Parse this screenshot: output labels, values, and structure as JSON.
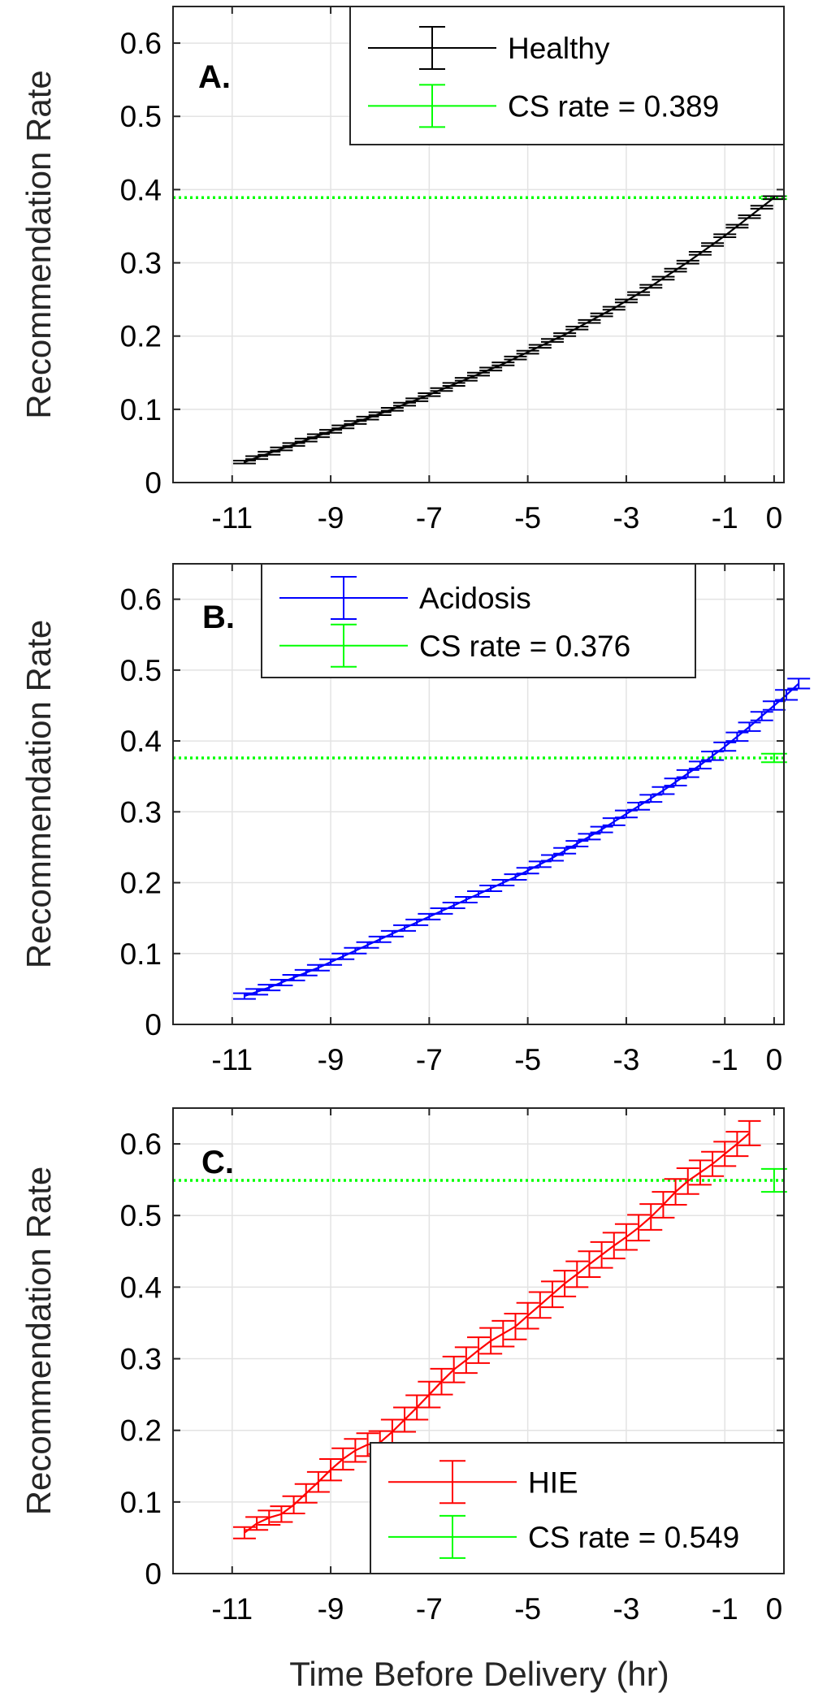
{
  "figure": {
    "xlabel": "Time Before Delivery (hr)"
  },
  "chart_data": [
    {
      "type": "line",
      "panel": "A.",
      "ylabel": "Recommendation Rate",
      "xlabel": "",
      "xlim": [
        -12.2,
        0.2
      ],
      "ylim": [
        0,
        0.65
      ],
      "xticks": [
        -11,
        -9,
        -7,
        -5,
        -3,
        -1,
        0
      ],
      "xtick_labels": [
        "-11",
        "-9",
        "-7",
        "-5",
        "-3",
        "-1",
        "0"
      ],
      "yticks": [
        0,
        0.1,
        0.2,
        0.3,
        0.4,
        0.5,
        0.6
      ],
      "ytick_labels": [
        "0",
        "0.1",
        "0.2",
        "0.3",
        "0.4",
        "0.5",
        "0.6"
      ],
      "grid": true,
      "legend_position": "top-right",
      "series": [
        {
          "name": "Healthy",
          "color": "#000000",
          "x_start": -10.75,
          "x_step": 0.25,
          "values": [
            0.028,
            0.034,
            0.04,
            0.046,
            0.052,
            0.058,
            0.064,
            0.07,
            0.076,
            0.082,
            0.088,
            0.094,
            0.1,
            0.107,
            0.113,
            0.12,
            0.127,
            0.134,
            0.141,
            0.148,
            0.155,
            0.162,
            0.17,
            0.178,
            0.186,
            0.194,
            0.202,
            0.211,
            0.22,
            0.229,
            0.238,
            0.248,
            0.258,
            0.268,
            0.279,
            0.29,
            0.301,
            0.313,
            0.325,
            0.337,
            0.35,
            0.363,
            0.376,
            0.389
          ],
          "error": [
            0.002,
            0.002,
            0.002,
            0.002,
            0.002,
            0.002,
            0.002,
            0.002,
            0.002,
            0.002,
            0.002,
            0.002,
            0.002,
            0.002,
            0.002,
            0.002,
            0.002,
            0.002,
            0.002,
            0.002,
            0.002,
            0.002,
            0.002,
            0.002,
            0.002,
            0.002,
            0.002,
            0.002,
            0.002,
            0.002,
            0.002,
            0.002,
            0.002,
            0.002,
            0.002,
            0.002,
            0.002,
            0.002,
            0.002,
            0.002,
            0.002,
            0.002,
            0.002,
            0.002
          ]
        }
      ],
      "reference": {
        "name": "CS rate = 0.389",
        "value": 0.389,
        "error": 0.002,
        "x": 0,
        "color": "#00ff00",
        "style": "dotted"
      }
    },
    {
      "type": "line",
      "panel": "B.",
      "ylabel": "Recommendation Rate",
      "xlabel": "",
      "xlim": [
        -12.2,
        0.2
      ],
      "ylim": [
        0,
        0.65
      ],
      "xticks": [
        -11,
        -9,
        -7,
        -5,
        -3,
        -1,
        0
      ],
      "xtick_labels": [
        "-11",
        "-9",
        "-7",
        "-5",
        "-3",
        "-1",
        "0"
      ],
      "yticks": [
        0,
        0.1,
        0.2,
        0.3,
        0.4,
        0.5,
        0.6
      ],
      "ytick_labels": [
        "0",
        "0.1",
        "0.2",
        "0.3",
        "0.4",
        "0.5",
        "0.6"
      ],
      "grid": true,
      "legend_position": "top-left",
      "series": [
        {
          "name": "Acidosis",
          "color": "#0000ff",
          "x_start": -10.75,
          "x_step": 0.25,
          "values": [
            0.04,
            0.046,
            0.052,
            0.059,
            0.066,
            0.073,
            0.08,
            0.088,
            0.096,
            0.104,
            0.112,
            0.12,
            0.128,
            0.136,
            0.144,
            0.152,
            0.16,
            0.168,
            0.176,
            0.184,
            0.192,
            0.2,
            0.208,
            0.217,
            0.226,
            0.235,
            0.245,
            0.255,
            0.265,
            0.275,
            0.286,
            0.297,
            0.308,
            0.319,
            0.33,
            0.342,
            0.354,
            0.366,
            0.379,
            0.392,
            0.406,
            0.42,
            0.435,
            0.45,
            0.465,
            0.481
          ],
          "error": [
            0.004,
            0.004,
            0.004,
            0.004,
            0.004,
            0.004,
            0.004,
            0.004,
            0.004,
            0.004,
            0.004,
            0.004,
            0.004,
            0.004,
            0.004,
            0.004,
            0.004,
            0.004,
            0.004,
            0.004,
            0.004,
            0.004,
            0.004,
            0.004,
            0.004,
            0.004,
            0.004,
            0.004,
            0.004,
            0.004,
            0.005,
            0.005,
            0.005,
            0.005,
            0.005,
            0.005,
            0.005,
            0.005,
            0.006,
            0.006,
            0.006,
            0.006,
            0.006,
            0.006,
            0.007,
            0.007
          ]
        }
      ],
      "reference": {
        "name": "CS rate = 0.376",
        "value": 0.376,
        "error": 0.006,
        "x": 0,
        "color": "#00ff00",
        "style": "dotted"
      }
    },
    {
      "type": "line",
      "panel": "C.",
      "ylabel": "Recommendation Rate",
      "xlabel": "Time Before Delivery (hr)",
      "xlim": [
        -12.2,
        0.2
      ],
      "ylim": [
        0,
        0.65
      ],
      "xticks": [
        -11,
        -9,
        -7,
        -5,
        -3,
        -1,
        0
      ],
      "xtick_labels": [
        "-11",
        "-9",
        "-7",
        "-5",
        "-3",
        "-1",
        "0"
      ],
      "yticks": [
        0,
        0.1,
        0.2,
        0.3,
        0.4,
        0.5,
        0.6
      ],
      "ytick_labels": [
        "0",
        "0.1",
        "0.2",
        "0.3",
        "0.4",
        "0.5",
        "0.6"
      ],
      "grid": true,
      "legend_position": "bottom-right",
      "series": [
        {
          "name": "HIE",
          "color": "#ff0000",
          "x_start": -10.75,
          "x_step": 0.25,
          "values": [
            0.057,
            0.07,
            0.078,
            0.083,
            0.096,
            0.112,
            0.128,
            0.145,
            0.16,
            0.172,
            0.18,
            0.183,
            0.198,
            0.215,
            0.232,
            0.25,
            0.268,
            0.285,
            0.298,
            0.312,
            0.325,
            0.335,
            0.345,
            0.36,
            0.375,
            0.39,
            0.405,
            0.418,
            0.432,
            0.445,
            0.458,
            0.47,
            0.483,
            0.498,
            0.515,
            0.533,
            0.548,
            0.56,
            0.572,
            0.586,
            0.6,
            0.615
          ],
          "error": [
            0.008,
            0.009,
            0.01,
            0.011,
            0.012,
            0.013,
            0.014,
            0.015,
            0.015,
            0.016,
            0.016,
            0.016,
            0.017,
            0.017,
            0.017,
            0.018,
            0.018,
            0.018,
            0.018,
            0.018,
            0.018,
            0.018,
            0.018,
            0.018,
            0.018,
            0.018,
            0.018,
            0.018,
            0.018,
            0.018,
            0.018,
            0.018,
            0.018,
            0.018,
            0.018,
            0.018,
            0.018,
            0.017,
            0.017,
            0.017,
            0.017,
            0.017
          ]
        }
      ],
      "reference": {
        "name": "CS rate = 0.549",
        "value": 0.549,
        "error": 0.016,
        "x": 0,
        "color": "#00ff00",
        "style": "dotted"
      }
    }
  ]
}
